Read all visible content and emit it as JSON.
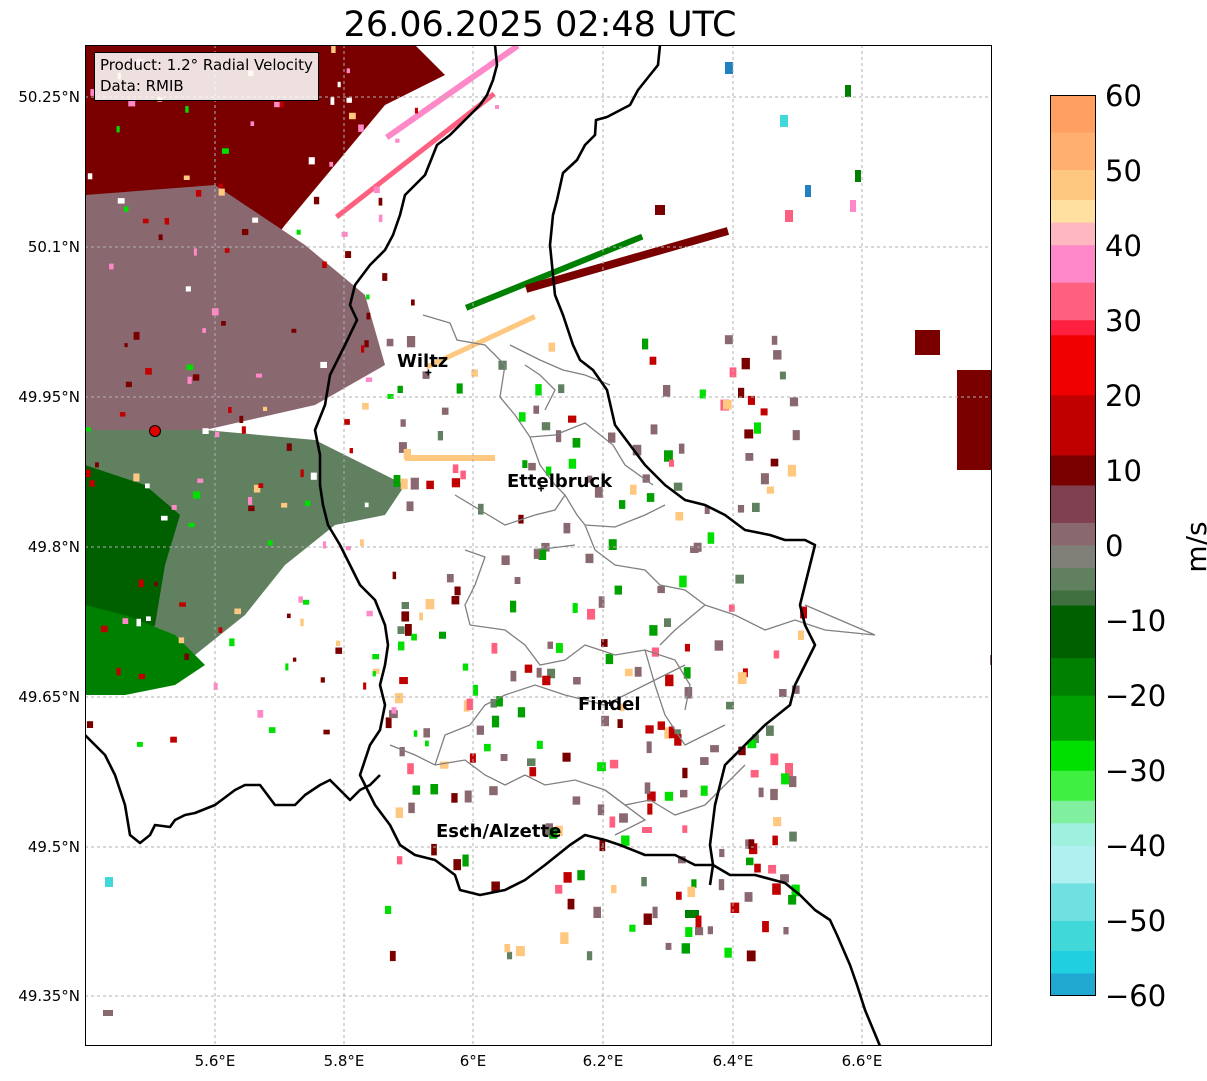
{
  "title": "26.06.2025 02:48 UTC",
  "info_box": {
    "product": "Product: 1.2° Radial Velocity",
    "source": "Data: RMIB"
  },
  "lat_labels": [
    "50.25°N",
    "50.1°N",
    "49.95°N",
    "49.8°N",
    "49.65°N",
    "49.5°N",
    "49.35°N"
  ],
  "lon_labels": [
    "5.6°E",
    "5.8°E",
    "6°E",
    "6.2°E",
    "6.4°E",
    "6.6°E"
  ],
  "cities": [
    {
      "name": "Wiltz",
      "lon": 5.93,
      "lat": 49.966
    },
    {
      "name": "Ettelbruck",
      "lon": 6.104,
      "lat": 49.847
    },
    {
      "name": "Findel",
      "lon": 6.21,
      "lat": 49.627
    },
    {
      "name": "Esch/Alzette",
      "lon": 5.987,
      "lat": 49.498
    }
  ],
  "radar_site": {
    "lon": 5.505,
    "lat": 49.914
  },
  "colorbar": {
    "label": "m/s",
    "ticks": [
      "60",
      "50",
      "40",
      "30",
      "20",
      "10",
      "0",
      "−10",
      "−20",
      "−30",
      "−40",
      "−50",
      "−60"
    ],
    "min": -60,
    "max": 60,
    "stops": [
      {
        "v": 60,
        "c": "#ffa060"
      },
      {
        "v": 55,
        "c": "#ffb070"
      },
      {
        "v": 50,
        "c": "#ffc880"
      },
      {
        "v": 46,
        "c": "#ffe0a0"
      },
      {
        "v": 43,
        "c": "#ffb8c0"
      },
      {
        "v": 40,
        "c": "#ff88c8"
      },
      {
        "v": 35,
        "c": "#ff6080"
      },
      {
        "v": 30,
        "c": "#ff2040"
      },
      {
        "v": 28,
        "c": "#f00000"
      },
      {
        "v": 20,
        "c": "#c00000"
      },
      {
        "v": 12,
        "c": "#7a0000"
      },
      {
        "v": 8,
        "c": "#804050"
      },
      {
        "v": 3,
        "c": "#8a6870"
      },
      {
        "v": 0,
        "c": "#808078"
      },
      {
        "v": -3,
        "c": "#608060"
      },
      {
        "v": -6,
        "c": "#407040"
      },
      {
        "v": -8,
        "c": "#006000"
      },
      {
        "v": -15,
        "c": "#008000"
      },
      {
        "v": -20,
        "c": "#00a000"
      },
      {
        "v": -26,
        "c": "#00e000"
      },
      {
        "v": -30,
        "c": "#40f040"
      },
      {
        "v": -34,
        "c": "#80f0a0"
      },
      {
        "v": -37,
        "c": "#a0f0e0"
      },
      {
        "v": -40,
        "c": "#b0f0f0"
      },
      {
        "v": -45,
        "c": "#70e0e0"
      },
      {
        "v": -50,
        "c": "#40d8d8"
      },
      {
        "v": -54,
        "c": "#20d0e0"
      },
      {
        "v": -57,
        "c": "#20a8d0"
      },
      {
        "v": -60,
        "c": "#2080c0"
      }
    ]
  },
  "colors": {
    "border": "#000000",
    "canton_lines": "#808080",
    "grid": "#b0b0b0",
    "radar_dot": "#e00000"
  }
}
